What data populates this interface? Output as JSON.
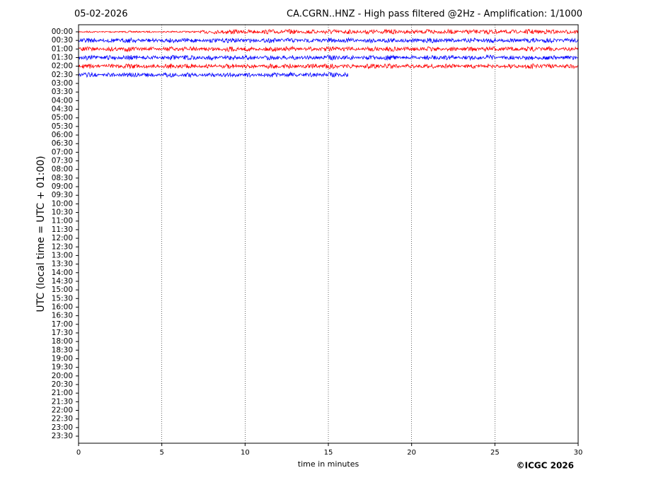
{
  "chart_data": {
    "type": "helicorder",
    "date": "05-02-2026",
    "title": "CA.CGRN..HNZ - High pass filtered @2Hz - Amplification: 1/1000",
    "xlabel": "time in minutes",
    "ylabel": "UTC (local time = UTC + 01:00)",
    "copyright": "©ICGC 2026",
    "xlim": [
      0,
      30
    ],
    "xticks": [
      0,
      5,
      10,
      15,
      20,
      25,
      30
    ],
    "grid": true,
    "categories": [
      "00:00",
      "00:30",
      "01:00",
      "01:30",
      "02:00",
      "02:30",
      "03:00",
      "03:30",
      "04:00",
      "04:30",
      "05:00",
      "05:30",
      "06:00",
      "06:30",
      "07:00",
      "07:30",
      "08:00",
      "08:30",
      "09:00",
      "09:30",
      "10:00",
      "10:30",
      "11:00",
      "11:30",
      "12:00",
      "12:30",
      "13:00",
      "13:30",
      "14:00",
      "14:30",
      "15:00",
      "15:30",
      "16:00",
      "16:30",
      "17:00",
      "17:30",
      "18:00",
      "18:30",
      "19:00",
      "19:30",
      "20:00",
      "20:30",
      "21:00",
      "21:30",
      "22:00",
      "22:30",
      "23:00",
      "23:30"
    ],
    "traces": [
      {
        "x": [
          0,
          30
        ],
        "color": "#ff0000"
      },
      {
        "x": [
          0,
          30
        ],
        "color": "#0000ff"
      },
      {
        "x": [
          0,
          30
        ],
        "color": "#ff0000"
      },
      {
        "x": [
          0,
          30
        ],
        "color": "#0000ff"
      },
      {
        "x": [
          0,
          30
        ],
        "color": "#ff0000"
      },
      {
        "x": [
          0,
          16.2
        ],
        "color": "#0000ff"
      }
    ]
  }
}
